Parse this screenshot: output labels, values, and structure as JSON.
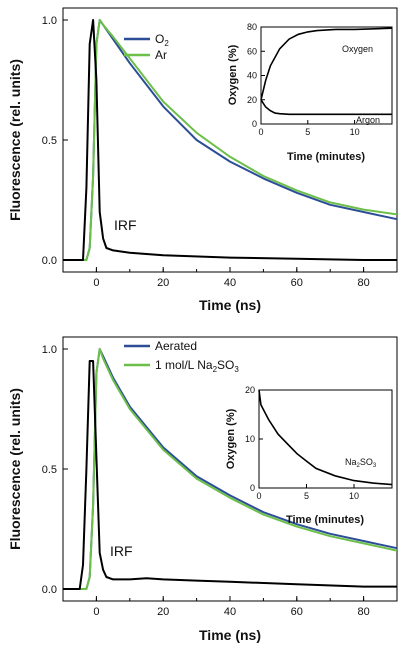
{
  "chart_data": [
    {
      "type": "line",
      "xlabel": "Time (ns)",
      "ylabel": "Fluorescence (rel. units)",
      "xlim": [
        -10,
        90
      ],
      "ylim": [
        -0.05,
        1.05
      ],
      "xticks": [
        "0",
        "20",
        "40",
        "60",
        "80"
      ],
      "yticks": [
        "0.0",
        "0.5",
        "1.0"
      ],
      "legend": {
        "position": "top-left",
        "entries": [
          {
            "text": "O",
            "sub": "2",
            "color": "#2c4e96"
          },
          {
            "text": "Ar",
            "sub": "",
            "color": "#6cc04a"
          }
        ]
      },
      "annotation": "IRF",
      "series": [
        {
          "name": "O2",
          "color": "#2c4e96",
          "x": [
            -10,
            -3,
            -2,
            -1,
            0,
            1,
            2,
            5,
            10,
            20,
            30,
            40,
            50,
            60,
            70,
            80,
            90
          ],
          "y": [
            0,
            0,
            0.05,
            0.35,
            0.9,
            1.0,
            0.98,
            0.92,
            0.82,
            0.64,
            0.5,
            0.41,
            0.34,
            0.28,
            0.23,
            0.2,
            0.17
          ]
        },
        {
          "name": "Ar",
          "color": "#6cc04a",
          "x": [
            -10,
            -3,
            -2,
            -1,
            0,
            1,
            2,
            5,
            10,
            20,
            30,
            40,
            50,
            60,
            70,
            80,
            90
          ],
          "y": [
            0,
            0,
            0.05,
            0.35,
            0.9,
            1.0,
            0.98,
            0.93,
            0.84,
            0.66,
            0.53,
            0.43,
            0.35,
            0.29,
            0.24,
            0.21,
            0.19
          ]
        },
        {
          "name": "IRF",
          "color": "#000000",
          "x": [
            -10,
            -4,
            -3,
            -2,
            -1,
            0,
            1,
            2,
            3,
            5,
            10,
            20,
            40,
            60,
            80,
            90
          ],
          "y": [
            0,
            0,
            0.3,
            0.9,
            1.0,
            0.75,
            0.2,
            0.09,
            0.05,
            0.04,
            0.03,
            0.02,
            0.01,
            0.005,
            0.0,
            0.0
          ]
        }
      ],
      "inset": {
        "xlabel": "Time (minutes)",
        "ylabel": "Oxygen (%)",
        "xlim": [
          0,
          14
        ],
        "ylim": [
          0,
          80
        ],
        "xticks": [
          "0",
          "5",
          "10"
        ],
        "yticks": [
          "0",
          "20",
          "40",
          "60",
          "80"
        ],
        "labels": [
          "Oxygen",
          "Argon"
        ],
        "series": [
          {
            "x": [
              0,
              0.5,
              1,
              2,
              3,
              4,
              5,
              6,
              8,
              10,
              14
            ],
            "y": [
              20,
              36,
              48,
              62,
              70,
              74,
              76,
              77,
              78,
              78,
              79
            ]
          },
          {
            "x": [
              0,
              0.5,
              1,
              1.5,
              2,
              3,
              5,
              8,
              14
            ],
            "y": [
              20,
              14,
              11,
              9,
              8.5,
              8,
              8,
              8,
              8
            ]
          }
        ]
      }
    },
    {
      "type": "line",
      "xlabel": "Time (ns)",
      "ylabel": "Fluorescence (rel. units)",
      "xlim": [
        -10,
        90
      ],
      "ylim": [
        -0.05,
        1.05
      ],
      "xticks": [
        "0",
        "20",
        "40",
        "60",
        "80"
      ],
      "yticks": [
        "0.0",
        "0.5",
        "1.0"
      ],
      "legend": {
        "position": "top-left",
        "entries": [
          {
            "text": "Aerated",
            "sub": "",
            "color": "#2c4e96"
          },
          {
            "text": "1 mol/L Na",
            "sub": "2",
            "text2": "SO",
            "sub2": "3",
            "color": "#6cc04a"
          }
        ]
      },
      "annotation": "IRF",
      "series": [
        {
          "name": "Aerated",
          "color": "#2c4e96",
          "x": [
            -10,
            -3,
            -2,
            -1,
            0,
            1,
            2,
            5,
            10,
            20,
            30,
            40,
            50,
            60,
            70,
            80,
            90
          ],
          "y": [
            0,
            0,
            0.05,
            0.35,
            0.9,
            1.0,
            0.97,
            0.88,
            0.76,
            0.59,
            0.47,
            0.39,
            0.32,
            0.27,
            0.23,
            0.2,
            0.17
          ]
        },
        {
          "name": "1 mol/L Na2SO3",
          "color": "#6cc04a",
          "x": [
            -10,
            -3,
            -2,
            -1,
            0,
            1,
            2,
            5,
            10,
            20,
            30,
            40,
            50,
            60,
            70,
            80,
            90
          ],
          "y": [
            0,
            0,
            0.05,
            0.35,
            0.9,
            1.0,
            0.96,
            0.87,
            0.75,
            0.58,
            0.46,
            0.38,
            0.31,
            0.26,
            0.22,
            0.19,
            0.16
          ]
        },
        {
          "name": "IRF",
          "color": "#000000",
          "x": [
            -10,
            -5,
            -4,
            -3,
            -2,
            -1,
            0,
            1,
            2,
            3,
            5,
            10,
            15,
            20,
            30,
            40,
            60,
            80,
            90
          ],
          "y": [
            0,
            0,
            0.1,
            0.5,
            0.95,
            0.95,
            0.55,
            0.15,
            0.08,
            0.05,
            0.04,
            0.04,
            0.045,
            0.04,
            0.035,
            0.03,
            0.02,
            0.01,
            0.01
          ]
        }
      ],
      "inset": {
        "xlabel": "Time (minutes)",
        "ylabel": "Oxygen (%)",
        "xlim": [
          0,
          14
        ],
        "ylim": [
          0,
          20
        ],
        "xticks": [
          "0",
          "5",
          "10"
        ],
        "yticks": [
          "0",
          "10",
          "20"
        ],
        "labels": [
          "Na",
          "2",
          "SO",
          "3"
        ],
        "series": [
          {
            "x": [
              0,
              0.2,
              1,
              2,
              3,
              4,
              5,
              6,
              8,
              10,
              12,
              14
            ],
            "y": [
              20,
              17,
              14,
              11,
              9,
              7,
              5.5,
              4,
              2.5,
              1.5,
              1,
              0.7
            ]
          }
        ]
      }
    }
  ]
}
